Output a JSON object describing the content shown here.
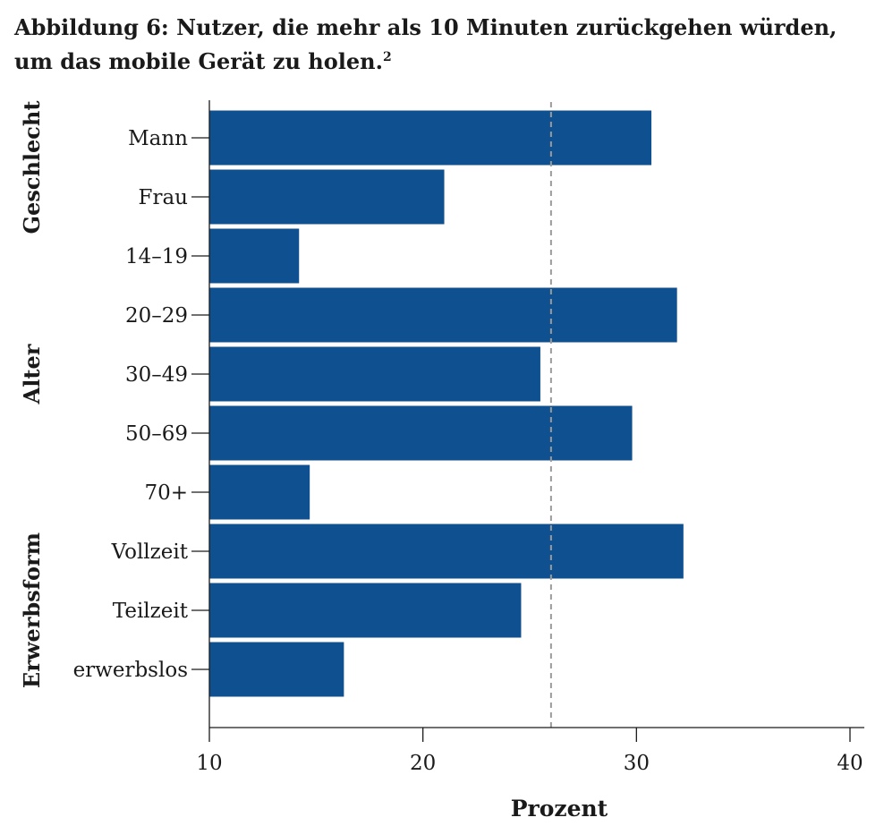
{
  "chart_data": {
    "type": "bar",
    "orientation": "horizontal",
    "title": "Abbildung 6: Nutzer, die mehr als 10 Minuten zurückgehen würden, um das mobile Gerät zu holen.",
    "title_footnote": "2",
    "xlabel": "Prozent",
    "xlim": [
      10,
      40
    ],
    "xticks": [
      10,
      20,
      30,
      40
    ],
    "reference_line": 26,
    "bar_color": "#0f5190",
    "groups": [
      {
        "name": "Geschlecht",
        "categories": [
          "Mann",
          "Frau"
        ]
      },
      {
        "name": "Alter",
        "categories": [
          "14–19",
          "20–29",
          "30–49",
          "50–69",
          "70+"
        ]
      },
      {
        "name": "Erwerbsform",
        "categories": [
          "Vollzeit",
          "Teilzeit",
          "erwerbslos"
        ]
      }
    ],
    "categories": [
      "Mann",
      "Frau",
      "14–19",
      "20–29",
      "30–49",
      "50–69",
      "70+",
      "Vollzeit",
      "Teilzeit",
      "erwerbslos"
    ],
    "values": [
      30.7,
      21.0,
      14.2,
      31.9,
      25.5,
      29.8,
      14.7,
      32.2,
      24.6,
      16.3
    ]
  }
}
